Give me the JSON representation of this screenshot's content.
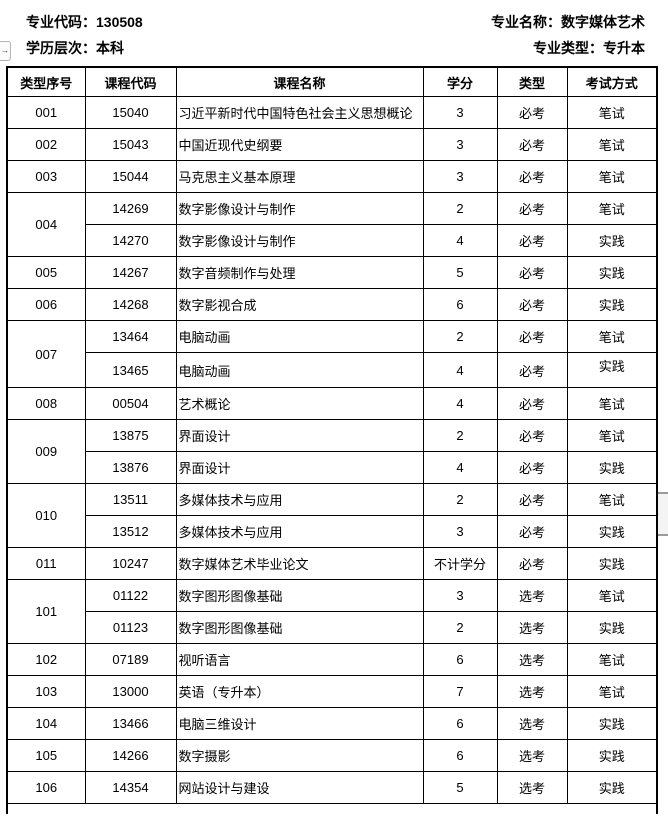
{
  "meta": {
    "colon": "：",
    "major_code": {
      "label": "专业代码",
      "value": "130508"
    },
    "major_name": {
      "label": "专业名称",
      "value": "数字媒体艺术"
    },
    "education_level": {
      "label": "学历层次",
      "value": "本科"
    },
    "major_type": {
      "label": "专业类型",
      "value": "专升本"
    }
  },
  "icons": {
    "left_collapse_arrow": "→",
    "right_scroll_grip": "+"
  },
  "table": {
    "columns": [
      "类型序号",
      "课程代码",
      "课程名称",
      "学分",
      "类型",
      "考试方式"
    ],
    "groups": [
      {
        "no": "001",
        "courses": [
          {
            "code": "15040",
            "name": "习近平新时代中国特色社会主义思想概论",
            "credits": "3",
            "type": "必考",
            "method": "笔试"
          }
        ]
      },
      {
        "no": "002",
        "courses": [
          {
            "code": "15043",
            "name": "中国近现代史纲要",
            "credits": "3",
            "type": "必考",
            "method": "笔试"
          }
        ]
      },
      {
        "no": "003",
        "courses": [
          {
            "code": "15044",
            "name": "马克思主义基本原理",
            "credits": "3",
            "type": "必考",
            "method": "笔试"
          }
        ]
      },
      {
        "no": "004",
        "courses": [
          {
            "code": "14269",
            "name": "数字影像设计与制作",
            "credits": "2",
            "type": "必考",
            "method": "笔试"
          },
          {
            "code": "14270",
            "name": "数字影像设计与制作",
            "credits": "4",
            "type": "必考",
            "method": "实践"
          }
        ]
      },
      {
        "no": "005",
        "courses": [
          {
            "code": "14267",
            "name": "数字音频制作与处理",
            "credits": "5",
            "type": "必考",
            "method": "实践"
          }
        ]
      },
      {
        "no": "006",
        "courses": [
          {
            "code": "14268",
            "name": "数字影视合成",
            "credits": "6",
            "type": "必考",
            "method": "实践"
          }
        ]
      },
      {
        "no": "007",
        "courses": [
          {
            "code": "13464",
            "name": "电脑动画",
            "credits": "2",
            "type": "必考",
            "method": "笔试"
          },
          {
            "code": "13465",
            "name": "电脑动画",
            "credits": "4",
            "type": "必考",
            "method": "实践",
            "method_align": "top"
          }
        ]
      },
      {
        "no": "008",
        "courses": [
          {
            "code": "00504",
            "name": "艺术概论",
            "credits": "4",
            "type": "必考",
            "method": "笔试"
          }
        ]
      },
      {
        "no": "009",
        "courses": [
          {
            "code": "13875",
            "name": "界面设计",
            "credits": "2",
            "type": "必考",
            "method": "笔试"
          },
          {
            "code": "13876",
            "name": "界面设计",
            "credits": "4",
            "type": "必考",
            "method": "实践"
          }
        ]
      },
      {
        "no": "010",
        "courses": [
          {
            "code": "13511",
            "name": "多媒体技术与应用",
            "credits": "2",
            "type": "必考",
            "method": "笔试"
          },
          {
            "code": "13512",
            "name": "多媒体技术与应用",
            "credits": "3",
            "type": "必考",
            "method": "实践"
          }
        ]
      },
      {
        "no": "011",
        "courses": [
          {
            "code": "10247",
            "name": "数字媒体艺术毕业论文",
            "credits": "不计学分",
            "type": "必考",
            "method": "实践"
          }
        ]
      },
      {
        "no": "101",
        "courses": [
          {
            "code": "01122",
            "name": "数字图形图像基础",
            "credits": "3",
            "type": "选考",
            "method": "笔试"
          },
          {
            "code": "01123",
            "name": "数字图形图像基础",
            "credits": "2",
            "type": "选考",
            "method": "实践"
          }
        ]
      },
      {
        "no": "102",
        "courses": [
          {
            "code": "07189",
            "name": "视听语言",
            "credits": "6",
            "type": "选考",
            "method": "笔试"
          }
        ]
      },
      {
        "no": "103",
        "courses": [
          {
            "code": "13000",
            "name": "英语（专升本）",
            "credits": "7",
            "type": "选考",
            "method": "笔试"
          }
        ]
      },
      {
        "no": "104",
        "courses": [
          {
            "code": "13466",
            "name": "电脑三维设计",
            "credits": "6",
            "type": "选考",
            "method": "实践"
          }
        ]
      },
      {
        "no": "105",
        "courses": [
          {
            "code": "14266",
            "name": "数字摄影",
            "credits": "6",
            "type": "选考",
            "method": "实践"
          }
        ]
      },
      {
        "no": "106",
        "courses": [
          {
            "code": "14354",
            "name": "网站设计与建设",
            "credits": "5",
            "type": "选考",
            "method": "实践"
          }
        ]
      }
    ]
  }
}
